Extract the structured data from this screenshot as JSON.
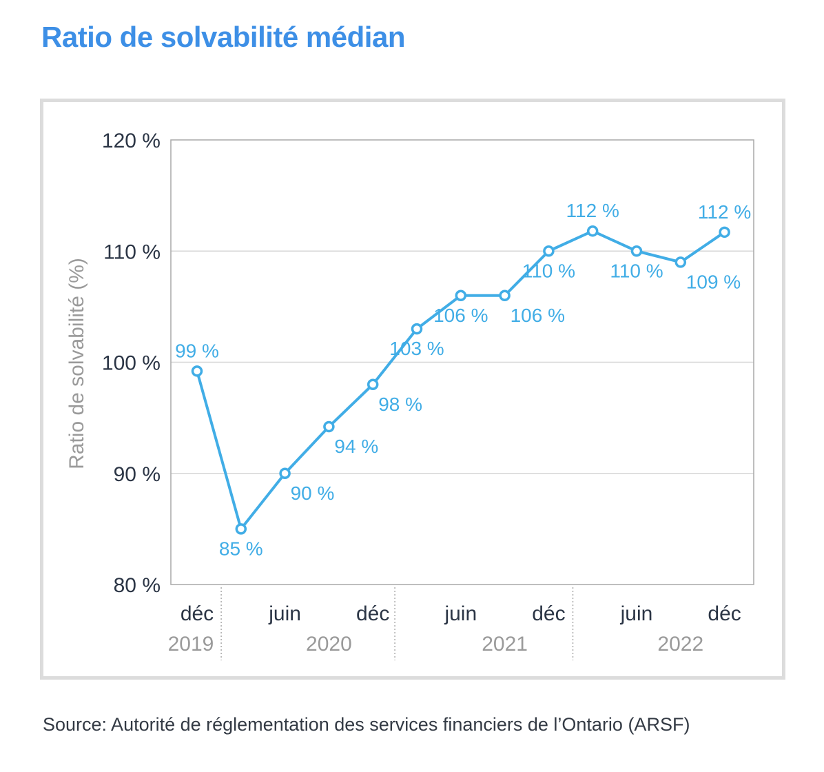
{
  "title": "Ratio de solvabilité médian",
  "source": "Source: Autorité de réglementation des services financiers de l’Ontario (ARSF)",
  "colors": {
    "title": "#3d8fe6",
    "line": "#41ade6",
    "axis_text": "#2b3545",
    "year_text": "#9a9a9a",
    "grid": "#d6d6d6",
    "frame": "#dcdcdc"
  },
  "chart_data": {
    "type": "line",
    "title": "Ratio de solvabilité médian",
    "ylabel": "Ratio de solvabilité (%)",
    "xlabel": "",
    "ylim": [
      80,
      120
    ],
    "yticks": [
      80,
      90,
      100,
      110,
      120
    ],
    "ytick_labels": [
      "80 %",
      "90 %",
      "100 %",
      "110 %",
      "120 %"
    ],
    "grid": "horizontal",
    "x": [
      0,
      1,
      2,
      3,
      4,
      5,
      6,
      7,
      8,
      9,
      10,
      11,
      12
    ],
    "values": [
      99.2,
      85,
      90,
      94.2,
      98,
      103,
      106,
      106,
      110,
      111.8,
      110,
      109,
      111.7
    ],
    "data_labels": [
      "99 %",
      "85 %",
      "90 %",
      "94 %",
      "98 %",
      "103 %",
      "106 %",
      "106 %",
      "110 %",
      "112 %",
      "110 %",
      "109 %",
      "112 %"
    ],
    "label_positions": [
      "above",
      "below",
      "below-right",
      "below-right",
      "below-right",
      "below",
      "below",
      "below-right",
      "below",
      "above",
      "below",
      "below-right",
      "above"
    ],
    "xtick_labels": [
      {
        "x": 0,
        "label": "déc"
      },
      {
        "x": 2,
        "label": "juin"
      },
      {
        "x": 4,
        "label": "déc"
      },
      {
        "x": 6,
        "label": "juin"
      },
      {
        "x": 8,
        "label": "déc"
      },
      {
        "x": 10,
        "label": "juin"
      },
      {
        "x": 12,
        "label": "déc"
      }
    ],
    "year_labels": [
      {
        "x": 0,
        "label": "2019"
      },
      {
        "x": 3,
        "label": "2020"
      },
      {
        "x": 7,
        "label": "2021"
      },
      {
        "x": 11,
        "label": "2022"
      }
    ],
    "year_separators": [
      0.55,
      4.5,
      8.55
    ]
  }
}
